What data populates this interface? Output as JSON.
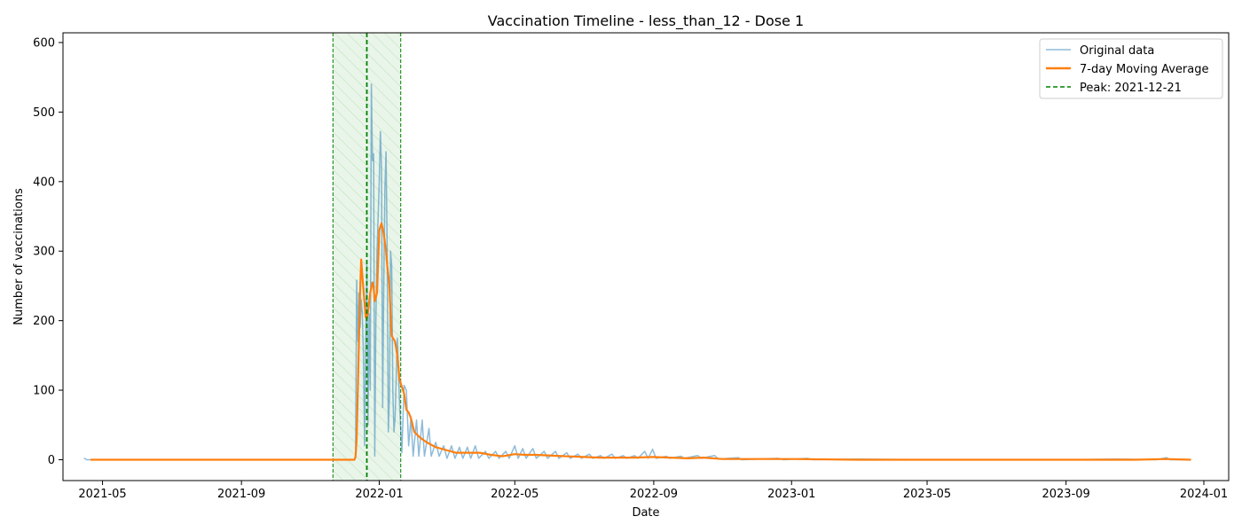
{
  "chart_data": {
    "type": "line",
    "title": "Vaccination Timeline - less_than_12 - Dose 1",
    "xlabel": "Date",
    "ylabel": "Number of vaccinations",
    "xlim": [
      "2021-03-27",
      "2024-01-23"
    ],
    "ylim": [
      -30,
      614
    ],
    "x_ticks": [
      "2021-05-01",
      "2021-09-01",
      "2022-01-01",
      "2022-05-01",
      "2022-09-01",
      "2023-01-01",
      "2023-05-01",
      "2023-09-01",
      "2024-01-01"
    ],
    "x_tick_labels": [
      "2021-05",
      "2021-09",
      "2022-01",
      "2022-05",
      "2022-09",
      "2023-01",
      "2023-05",
      "2023-09",
      "2024-01"
    ],
    "y_ticks": [
      0,
      100,
      200,
      300,
      400,
      500,
      600
    ],
    "grid": false,
    "legend_position": "top-right",
    "peak": {
      "date": "2021-12-21",
      "label": "Peak: 2021-12-21",
      "window_start": "2021-11-21",
      "window_end": "2022-01-20"
    },
    "series": [
      {
        "name": "Original data",
        "color": "#1f77b4",
        "points": [
          [
            "2021-04-15",
            2
          ],
          [
            "2021-04-17",
            0
          ],
          [
            "2021-06-01",
            0
          ],
          [
            "2021-08-01",
            0
          ],
          [
            "2021-10-01",
            0
          ],
          [
            "2021-12-10",
            0
          ],
          [
            "2021-12-11",
            5
          ],
          [
            "2021-12-12",
            258
          ],
          [
            "2021-12-13",
            170
          ],
          [
            "2021-12-14",
            240
          ],
          [
            "2021-12-15",
            190
          ],
          [
            "2021-12-16",
            230
          ],
          [
            "2021-12-17",
            210
          ],
          [
            "2021-12-18",
            150
          ],
          [
            "2021-12-19",
            20
          ],
          [
            "2021-12-20",
            180
          ],
          [
            "2021-12-21",
            280
          ],
          [
            "2021-12-22",
            50
          ],
          [
            "2021-12-23",
            210
          ],
          [
            "2021-12-24",
            100
          ],
          [
            "2021-12-25",
            540
          ],
          [
            "2021-12-26",
            430
          ],
          [
            "2021-12-27",
            440
          ],
          [
            "2021-12-28",
            5
          ],
          [
            "2021-12-29",
            200
          ],
          [
            "2021-12-30",
            300
          ],
          [
            "2022-01-01",
            400
          ],
          [
            "2022-01-02",
            472
          ],
          [
            "2022-01-03",
            420
          ],
          [
            "2022-01-04",
            75
          ],
          [
            "2022-01-05",
            250
          ],
          [
            "2022-01-06",
            390
          ],
          [
            "2022-01-07",
            443
          ],
          [
            "2022-01-08",
            300
          ],
          [
            "2022-01-09",
            40
          ],
          [
            "2022-01-10",
            90
          ],
          [
            "2022-01-11",
            300
          ],
          [
            "2022-01-12",
            280
          ],
          [
            "2022-01-13",
            100
          ],
          [
            "2022-01-14",
            40
          ],
          [
            "2022-01-15",
            60
          ],
          [
            "2022-01-17",
            175
          ],
          [
            "2022-01-19",
            80
          ],
          [
            "2022-01-21",
            10
          ],
          [
            "2022-01-23",
            107
          ],
          [
            "2022-01-25",
            100
          ],
          [
            "2022-01-27",
            20
          ],
          [
            "2022-01-29",
            60
          ],
          [
            "2022-01-31",
            5
          ],
          [
            "2022-02-03",
            57
          ],
          [
            "2022-02-05",
            5
          ],
          [
            "2022-02-08",
            57
          ],
          [
            "2022-02-10",
            5
          ],
          [
            "2022-02-14",
            45
          ],
          [
            "2022-02-16",
            5
          ],
          [
            "2022-02-20",
            25
          ],
          [
            "2022-02-23",
            5
          ],
          [
            "2022-02-27",
            20
          ],
          [
            "2022-03-02",
            2
          ],
          [
            "2022-03-06",
            20
          ],
          [
            "2022-03-09",
            2
          ],
          [
            "2022-03-13",
            18
          ],
          [
            "2022-03-16",
            2
          ],
          [
            "2022-03-20",
            18
          ],
          [
            "2022-03-23",
            2
          ],
          [
            "2022-03-27",
            20
          ],
          [
            "2022-03-30",
            2
          ],
          [
            "2022-04-05",
            12
          ],
          [
            "2022-04-08",
            2
          ],
          [
            "2022-04-14",
            12
          ],
          [
            "2022-04-17",
            2
          ],
          [
            "2022-04-23",
            12
          ],
          [
            "2022-04-26",
            2
          ],
          [
            "2022-05-01",
            20
          ],
          [
            "2022-05-04",
            2
          ],
          [
            "2022-05-08",
            16
          ],
          [
            "2022-05-11",
            2
          ],
          [
            "2022-05-17",
            16
          ],
          [
            "2022-05-20",
            2
          ],
          [
            "2022-05-27",
            12
          ],
          [
            "2022-05-30",
            2
          ],
          [
            "2022-06-06",
            12
          ],
          [
            "2022-06-09",
            2
          ],
          [
            "2022-06-16",
            10
          ],
          [
            "2022-06-19",
            2
          ],
          [
            "2022-06-26",
            8
          ],
          [
            "2022-06-29",
            2
          ],
          [
            "2022-07-06",
            8
          ],
          [
            "2022-07-09",
            2
          ],
          [
            "2022-07-16",
            6
          ],
          [
            "2022-07-19",
            2
          ],
          [
            "2022-07-26",
            8
          ],
          [
            "2022-07-29",
            2
          ],
          [
            "2022-08-05",
            6
          ],
          [
            "2022-08-08",
            2
          ],
          [
            "2022-08-15",
            6
          ],
          [
            "2022-08-18",
            2
          ],
          [
            "2022-08-24",
            12
          ],
          [
            "2022-08-27",
            2
          ],
          [
            "2022-08-31",
            15
          ],
          [
            "2022-09-03",
            2
          ],
          [
            "2022-09-12",
            5
          ],
          [
            "2022-09-15",
            2
          ],
          [
            "2022-09-25",
            5
          ],
          [
            "2022-09-28",
            2
          ],
          [
            "2022-10-10",
            6
          ],
          [
            "2022-10-13",
            2
          ],
          [
            "2022-10-25",
            6
          ],
          [
            "2022-10-28",
            1
          ],
          [
            "2022-11-15",
            3
          ],
          [
            "2022-11-18",
            0
          ],
          [
            "2022-12-20",
            2
          ],
          [
            "2022-12-25",
            0
          ],
          [
            "2023-01-15",
            2
          ],
          [
            "2023-01-20",
            0
          ],
          [
            "2023-03-01",
            1
          ],
          [
            "2023-05-01",
            0
          ],
          [
            "2023-09-01",
            0
          ],
          [
            "2023-10-15",
            1
          ],
          [
            "2023-11-20",
            0
          ],
          [
            "2023-11-29",
            3
          ],
          [
            "2023-12-02",
            0
          ],
          [
            "2023-12-20",
            0
          ]
        ]
      },
      {
        "name": "7-day Moving Average",
        "color": "#ff7f0e",
        "points": [
          [
            "2021-04-21",
            0
          ],
          [
            "2021-06-01",
            0
          ],
          [
            "2021-08-01",
            0
          ],
          [
            "2021-10-01",
            0
          ],
          [
            "2021-12-01",
            0
          ],
          [
            "2021-12-10",
            0
          ],
          [
            "2021-12-11",
            4
          ],
          [
            "2021-12-12",
            30
          ],
          [
            "2021-12-14",
            170
          ],
          [
            "2021-12-15",
            240
          ],
          [
            "2021-12-16",
            288
          ],
          [
            "2021-12-17",
            265
          ],
          [
            "2021-12-19",
            225
          ],
          [
            "2021-12-20",
            205
          ],
          [
            "2021-12-21",
            203
          ],
          [
            "2021-12-22",
            212
          ],
          [
            "2021-12-24",
            240
          ],
          [
            "2021-12-26",
            255
          ],
          [
            "2021-12-27",
            248
          ],
          [
            "2021-12-28",
            228
          ],
          [
            "2021-12-30",
            240
          ],
          [
            "2022-01-01",
            330
          ],
          [
            "2022-01-03",
            340
          ],
          [
            "2022-01-05",
            325
          ],
          [
            "2022-01-07",
            300
          ],
          [
            "2022-01-08",
            280
          ],
          [
            "2022-01-10",
            250
          ],
          [
            "2022-01-11",
            210
          ],
          [
            "2022-01-12",
            178
          ],
          [
            "2022-01-15",
            170
          ],
          [
            "2022-01-17",
            150
          ],
          [
            "2022-01-19",
            115
          ],
          [
            "2022-01-21",
            105
          ],
          [
            "2022-01-23",
            95
          ],
          [
            "2022-01-25",
            72
          ],
          [
            "2022-01-27",
            68
          ],
          [
            "2022-01-29",
            60
          ],
          [
            "2022-02-01",
            40
          ],
          [
            "2022-02-06",
            32
          ],
          [
            "2022-02-12",
            25
          ],
          [
            "2022-02-20",
            18
          ],
          [
            "2022-03-01",
            14
          ],
          [
            "2022-03-10",
            10
          ],
          [
            "2022-03-20",
            10
          ],
          [
            "2022-03-31",
            10
          ],
          [
            "2022-04-10",
            7
          ],
          [
            "2022-04-20",
            5
          ],
          [
            "2022-05-01",
            8
          ],
          [
            "2022-05-10",
            7
          ],
          [
            "2022-05-20",
            7
          ],
          [
            "2022-06-01",
            6
          ],
          [
            "2022-06-15",
            5
          ],
          [
            "2022-07-01",
            4
          ],
          [
            "2022-07-15",
            3
          ],
          [
            "2022-08-01",
            3
          ],
          [
            "2022-08-15",
            3
          ],
          [
            "2022-08-31",
            4
          ],
          [
            "2022-09-15",
            3
          ],
          [
            "2022-10-01",
            2
          ],
          [
            "2022-10-15",
            3
          ],
          [
            "2022-11-01",
            1
          ],
          [
            "2022-12-01",
            1
          ],
          [
            "2023-01-01",
            1
          ],
          [
            "2023-03-01",
            0
          ],
          [
            "2023-06-01",
            0
          ],
          [
            "2023-09-01",
            0
          ],
          [
            "2023-11-01",
            0
          ],
          [
            "2023-11-29",
            1
          ],
          [
            "2023-12-20",
            0
          ]
        ]
      }
    ],
    "peak_line": {
      "name": "Peak: 2021-12-21",
      "color": "#008000",
      "style": "dashed"
    },
    "peak_window_color": "#2ca02c"
  }
}
